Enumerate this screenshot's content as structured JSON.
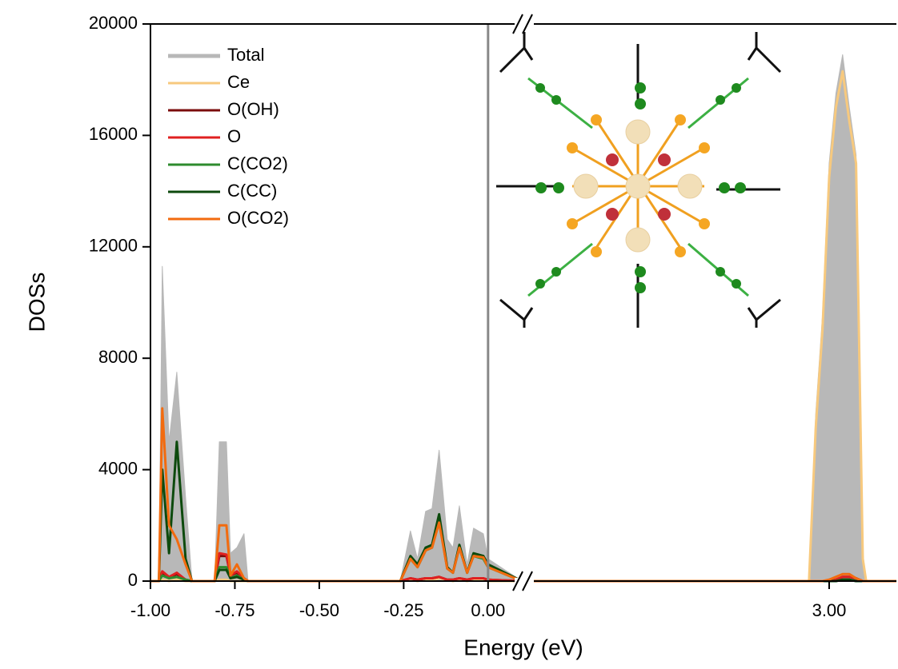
{
  "chart_data": {
    "type": "area-line",
    "x_label": "Energy (eV)",
    "y_label": "DOSs",
    "xlim_segments": [
      [
        -1.0,
        0.1
      ],
      [
        2.1,
        3.2
      ]
    ],
    "ylim": [
      0,
      20000
    ],
    "yticks": [
      0,
      4000,
      8000,
      12000,
      16000,
      20000
    ],
    "xticks": [
      {
        "value": -1.0,
        "label": "-1.00"
      },
      {
        "value": -0.75,
        "label": "-0.75"
      },
      {
        "value": -0.5,
        "label": "-0.50"
      },
      {
        "value": -0.25,
        "label": "-0.25"
      },
      {
        "value": 0.0,
        "label": "0.00"
      },
      {
        "value": 3.0,
        "label": "3.00"
      }
    ],
    "reference_line_x": 0,
    "legend": "upper-left",
    "x": [
      -1.0,
      -0.975,
      -0.965,
      -0.945,
      -0.922,
      -0.896,
      -0.877,
      -0.81,
      -0.796,
      -0.775,
      -0.763,
      -0.744,
      -0.723,
      -0.711,
      -0.26,
      -0.23,
      -0.209,
      -0.185,
      -0.166,
      -0.145,
      -0.121,
      -0.104,
      -0.085,
      -0.062,
      -0.043,
      -0.014,
      0.0,
      0.1,
      2.1,
      2.94,
      2.96,
      2.98,
      3.0,
      3.02,
      3.04,
      3.06,
      3.08,
      3.1,
      3.11,
      3.2
    ],
    "series": [
      {
        "name": "Total",
        "color": "#b8b8b8",
        "fill": true,
        "values": [
          0,
          0,
          11300,
          5000,
          7500,
          3000,
          0,
          0,
          5000,
          5000,
          1000,
          1200,
          1700,
          0,
          0,
          1800,
          800,
          2500,
          2600,
          4700,
          1500,
          1200,
          2700,
          600,
          1900,
          1700,
          800,
          0,
          0,
          0,
          6000,
          9500,
          15000,
          17500,
          18900,
          17000,
          15300,
          1000,
          0,
          0
        ]
      },
      {
        "name": "Ce",
        "color": "#f7c97e",
        "values": [
          0,
          0,
          50,
          0,
          50,
          0,
          0,
          0,
          50,
          50,
          0,
          0,
          0,
          0,
          0,
          50,
          0,
          50,
          50,
          100,
          50,
          0,
          50,
          0,
          50,
          50,
          0,
          0,
          0,
          0,
          5500,
          9000,
          14500,
          17000,
          18300,
          16500,
          15000,
          800,
          0,
          0
        ]
      },
      {
        "name": "O(OH)",
        "color": "#7b0c0c",
        "values": [
          0,
          0,
          300,
          150,
          250,
          50,
          0,
          0,
          900,
          900,
          200,
          300,
          100,
          0,
          0,
          100,
          50,
          100,
          100,
          150,
          50,
          50,
          100,
          50,
          100,
          100,
          50,
          0,
          0,
          0,
          0,
          0,
          0,
          50,
          150,
          150,
          100,
          0,
          0,
          0
        ]
      },
      {
        "name": "O",
        "color": "#e02020",
        "values": [
          0,
          0,
          350,
          150,
          300,
          50,
          0,
          0,
          1000,
          950,
          200,
          350,
          100,
          0,
          0,
          100,
          50,
          100,
          100,
          150,
          50,
          50,
          100,
          50,
          100,
          100,
          50,
          0,
          0,
          0,
          0,
          0,
          0,
          50,
          150,
          150,
          100,
          0,
          0,
          0
        ]
      },
      {
        "name": "C(CO2)",
        "color": "#2e8b2e",
        "values": [
          0,
          0,
          200,
          100,
          150,
          50,
          0,
          0,
          500,
          500,
          100,
          200,
          50,
          0,
          0,
          800,
          500,
          1100,
          1200,
          2200,
          450,
          300,
          1200,
          300,
          900,
          800,
          500,
          0,
          0,
          0,
          0,
          0,
          0,
          0,
          50,
          50,
          0,
          0,
          0,
          0
        ]
      },
      {
        "name": "C(CC)",
        "color": "#0d4a0d",
        "values": [
          0,
          0,
          4000,
          1000,
          5000,
          800,
          0,
          0,
          400,
          400,
          100,
          150,
          50,
          0,
          0,
          900,
          600,
          1200,
          1300,
          2400,
          500,
          300,
          1300,
          300,
          1000,
          900,
          600,
          0,
          0,
          0,
          0,
          0,
          0,
          0,
          50,
          50,
          0,
          0,
          0,
          0
        ]
      },
      {
        "name": "O(CO2)",
        "color": "#f26b0f",
        "values": [
          0,
          0,
          6200,
          2000,
          1500,
          600,
          0,
          0,
          2000,
          2000,
          200,
          600,
          100,
          0,
          0,
          800,
          500,
          1100,
          1200,
          2100,
          450,
          300,
          1200,
          300,
          900,
          850,
          500,
          0,
          0,
          0,
          0,
          0,
          50,
          150,
          250,
          250,
          100,
          0,
          0,
          0
        ]
      }
    ]
  }
}
